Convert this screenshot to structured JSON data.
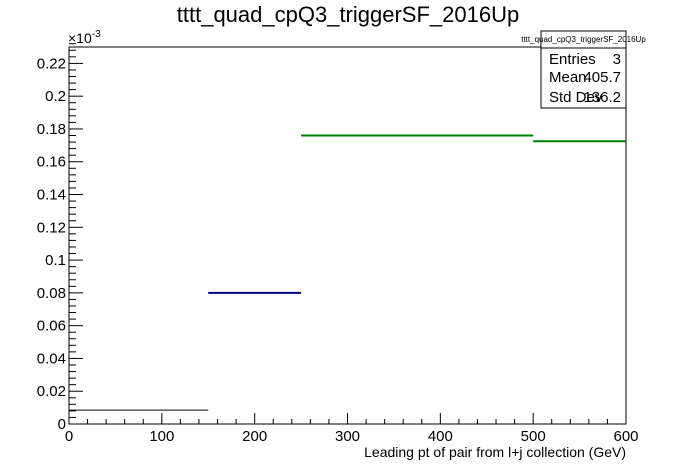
{
  "chart_data": {
    "type": "bar",
    "title": "tttt_quad_cpQ3_triggerSF_2016Up",
    "xlabel": "Leading pt of pair from l+j collection (GeV)",
    "ylabel": "",
    "y_exponent": "×10",
    "y_exponent_power": "-3",
    "xlim": [
      0,
      600
    ],
    "ylim": [
      0,
      0.23
    ],
    "x_ticks": [
      0,
      100,
      200,
      300,
      400,
      500,
      600
    ],
    "y_ticks": [
      0,
      0.02,
      0.04,
      0.06,
      0.08,
      0.1,
      0.12,
      0.14,
      0.16,
      0.18,
      0.2,
      0.22
    ],
    "x_tick_labels": [
      "0",
      "100",
      "200",
      "300",
      "400",
      "500",
      "600"
    ],
    "y_tick_labels": [
      "0",
      "0.02",
      "0.04",
      "0.06",
      "0.08",
      "0.1",
      "0.12",
      "0.14",
      "0.16",
      "0.18",
      "0.2",
      "0.22"
    ],
    "bins": [
      {
        "x_low": 0,
        "x_high": 150,
        "value": 0.0085,
        "color": "#000000"
      },
      {
        "x_low": 150,
        "x_high": 250,
        "value": 0.08,
        "color": "#000080"
      },
      {
        "x_low": 250,
        "x_high": 500,
        "value": 0.176,
        "color": "#008000"
      },
      {
        "x_low": 500,
        "x_high": 600,
        "value": 0.1725,
        "color": "#008000"
      }
    ],
    "grid": false,
    "legend": "none"
  },
  "stats_box": {
    "title": "tttt_quad_cpQ3_triggerSF_2016Up",
    "rows": [
      {
        "label": "Entries",
        "value": "3"
      },
      {
        "label": "Mean",
        "value": "405.7"
      },
      {
        "label": "Std Dev",
        "value": "136.2"
      }
    ]
  }
}
